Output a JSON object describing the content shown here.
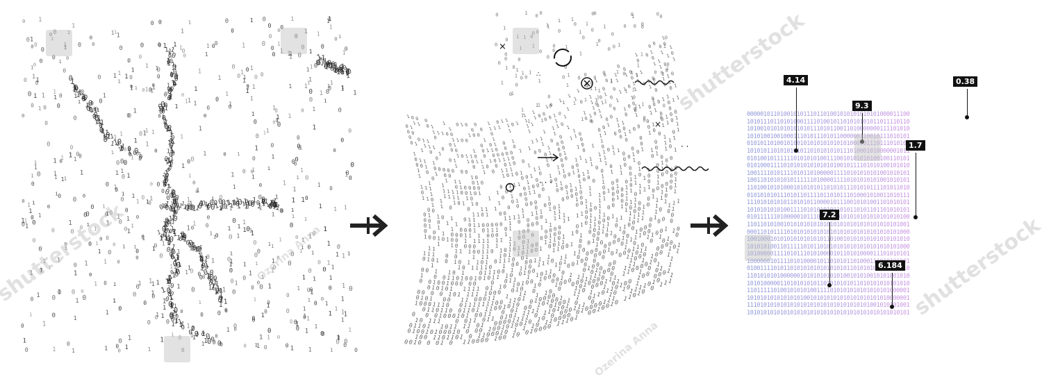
{
  "callouts": {
    "c1": "4.14",
    "c2": "9.3",
    "c3": "1.7",
    "c4": "0.38",
    "c5": "7.2",
    "c6": "6.184"
  },
  "watermark": {
    "brand": "shutterstock",
    "author": "Ozerina Anna"
  },
  "binary_rows": [
    "0000010110100101011101101001010101010101000011100",
    "1010111011010100011110100101101010101011011110110",
    "1010010101010101010111010110011010000000111101010",
    "1010100100100011101011101011000000110010111010101",
    "0101011010010100101010101010101000001110111010101",
    "1010101101010101011010101010111010001010000001011",
    "0101001011111101010101001110010101010100100110101",
    "0101000111101010101010101010010111101010100101010",
    "1001111010111101011010000011110101010101001010101",
    "1001101010101011111101000011110101010101001010101",
    "1101001010100010101010110101011101010111101011010",
    "0101010101110101101111011010111010001010011010111",
    "1110101010101101010110000101110010101001101010101",
    "1010101010100111101010101011010110101101101010101",
    "0101111110100000101110101010101010101010101010100",
    "1101101010010101010101010101010101010101010101001",
    "0001101011110101010101010101010101010101010101000",
    "1001000101010101010101011010010101010101010101010",
    "1010101001101111101011010101010101010101010101000",
    "1010000011110101110101000010110101000011101010101",
    "1000000101111010100001011010101101000111010101001",
    "0100111101011010101010101010101101010101010101010",
    "1101010101000000101010101010100101010010101001010",
    "1010100000110101010101101010101011010101010101010",
    "1101111101001010101001111010101010101010101000001",
    "1010101010101010100101010101010101010101010000001",
    "1110101010101010101010101010101010101001010101001",
    "1010101010101010101010101010101010101010101010101"
  ]
}
